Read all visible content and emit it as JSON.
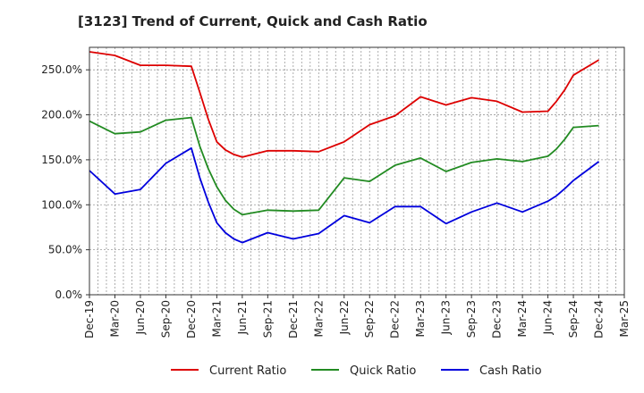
{
  "chart_data": {
    "type": "line",
    "title": "[3123]  Trend of Current, Quick and Cash Ratio",
    "xlabel": "",
    "ylabel": "",
    "ylim": [
      0,
      275
    ],
    "yticks": [
      0,
      50,
      100,
      150,
      200,
      250
    ],
    "ytick_labels": [
      "0.0%",
      "50.0%",
      "100.0%",
      "150.0%",
      "200.0%",
      "250.0%"
    ],
    "xlim": [
      0,
      63
    ],
    "x_tick_positions": [
      0,
      3,
      6,
      9,
      12,
      15,
      18,
      21,
      24,
      27,
      30,
      33,
      36,
      39,
      42,
      45,
      48,
      51,
      54,
      57,
      60,
      63
    ],
    "x_tick_labels": [
      "Dec-19",
      "Mar-20",
      "Jun-20",
      "Sep-20",
      "Dec-20",
      "Mar-21",
      "Jun-21",
      "Sep-21",
      "Dec-21",
      "Mar-22",
      "Jun-22",
      "Sep-22",
      "Dec-22",
      "Mar-23",
      "Jun-23",
      "Sep-23",
      "Dec-23",
      "Mar-24",
      "Jun-24",
      "Sep-24",
      "Dec-24",
      "Mar-25"
    ],
    "grid": true,
    "legend_position": "bottom",
    "series": [
      {
        "name": "Current Ratio",
        "color": "#dd0000",
        "x": [
          0,
          3,
          6,
          9,
          12,
          13,
          14,
          15,
          16,
          17,
          18,
          21,
          24,
          27,
          30,
          33,
          36,
          39,
          42,
          45,
          48,
          51,
          54,
          55,
          56,
          57,
          60
        ],
        "values": [
          270,
          266,
          255,
          255,
          254,
          225,
          195,
          170,
          161,
          156,
          153,
          160,
          160,
          159,
          170,
          189,
          199,
          220,
          211,
          219,
          215,
          203,
          204,
          215,
          228,
          244,
          261
        ]
      },
      {
        "name": "Quick Ratio",
        "color": "#228b22",
        "x": [
          0,
          3,
          6,
          9,
          12,
          13,
          14,
          15,
          16,
          17,
          18,
          21,
          24,
          27,
          30,
          33,
          36,
          39,
          42,
          45,
          48,
          51,
          54,
          55,
          56,
          57,
          60
        ],
        "values": [
          193,
          179,
          181,
          194,
          197,
          165,
          140,
          120,
          105,
          95,
          89,
          94,
          93,
          94,
          130,
          126,
          144,
          152,
          137,
          147,
          151,
          148,
          154,
          162,
          173,
          186,
          188
        ]
      },
      {
        "name": "Cash Ratio",
        "color": "#0000dd",
        "x": [
          0,
          3,
          6,
          9,
          12,
          13,
          14,
          15,
          16,
          17,
          18,
          21,
          24,
          27,
          30,
          33,
          36,
          39,
          42,
          45,
          48,
          51,
          54,
          55,
          56,
          57,
          60
        ],
        "values": [
          138,
          112,
          117,
          146,
          163,
          130,
          103,
          80,
          69,
          62,
          58,
          69,
          62,
          68,
          88,
          80,
          98,
          98,
          79,
          92,
          102,
          92,
          104,
          110,
          118,
          127,
          148
        ]
      }
    ]
  }
}
